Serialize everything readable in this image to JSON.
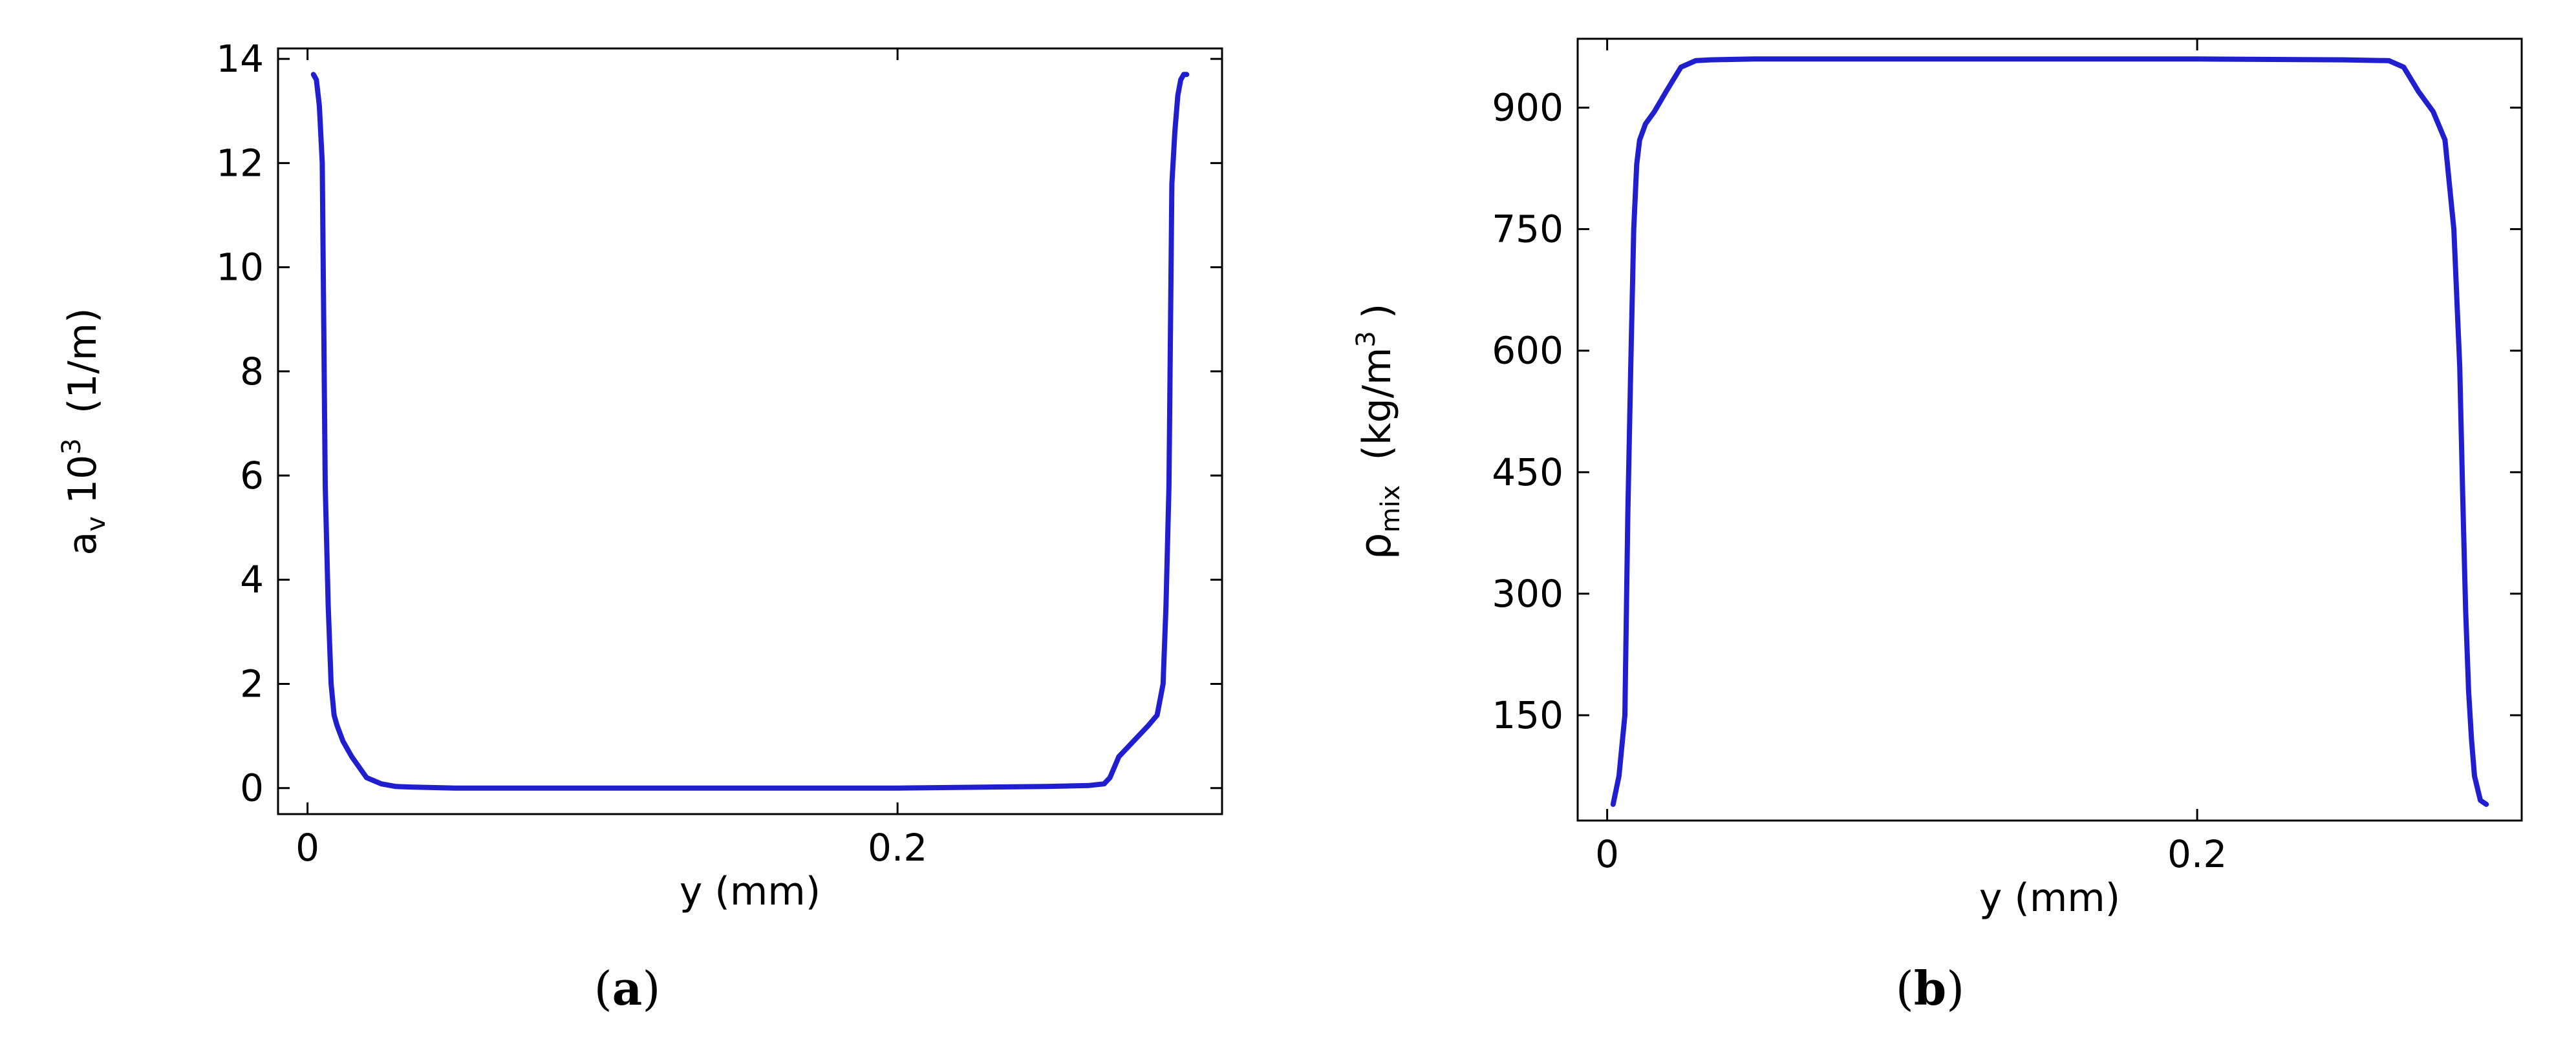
{
  "colors": {
    "line": "#1f1fcf",
    "axis": "#000000",
    "background": "#ffffff"
  },
  "chart_data": [
    {
      "type": "line",
      "panel": "a",
      "caption": {
        "open": "(",
        "letter": "a",
        "close": ")"
      },
      "xlabel": "y (mm)",
      "ylabel": {
        "main": "a",
        "sub": "v",
        "mid": " 10",
        "sup": "3",
        "tail": "  (1/m)"
      },
      "xlim": [
        -0.01,
        0.31
      ],
      "ylim": [
        -0.5,
        14.2
      ],
      "xticks": [
        {
          "value": 0,
          "label": "0"
        },
        {
          "value": 0.2,
          "label": "0.2"
        }
      ],
      "yticks": [
        {
          "value": 0,
          "label": "0"
        },
        {
          "value": 2,
          "label": "2"
        },
        {
          "value": 4,
          "label": "4"
        },
        {
          "value": 6,
          "label": "6"
        },
        {
          "value": 8,
          "label": "8"
        },
        {
          "value": 10,
          "label": "10"
        },
        {
          "value": 12,
          "label": "12"
        },
        {
          "value": 14,
          "label": "14"
        }
      ],
      "grid": false,
      "series": [
        {
          "x": [
            0.002,
            0.003,
            0.004,
            0.005,
            0.006,
            0.007,
            0.008,
            0.009,
            0.01,
            0.012,
            0.015,
            0.02,
            0.025,
            0.028,
            0.03,
            0.035,
            0.05,
            0.1,
            0.15,
            0.2,
            0.25,
            0.265,
            0.27,
            0.272,
            0.275,
            0.28,
            0.285,
            0.288,
            0.29,
            0.291,
            0.292,
            0.293,
            0.294,
            0.295,
            0.296,
            0.297,
            0.298
          ],
          "y": [
            13.7,
            13.6,
            13.1,
            12.0,
            5.8,
            3.5,
            2.0,
            1.4,
            1.2,
            0.9,
            0.6,
            0.2,
            0.08,
            0.05,
            0.03,
            0.02,
            0.0,
            0.0,
            0.0,
            0.0,
            0.03,
            0.05,
            0.08,
            0.2,
            0.6,
            0.9,
            1.2,
            1.4,
            2.0,
            3.5,
            5.8,
            11.6,
            12.6,
            13.3,
            13.6,
            13.7,
            13.7
          ]
        }
      ]
    },
    {
      "type": "line",
      "panel": "b",
      "caption": {
        "open": "(",
        "letter": "b",
        "close": ")"
      },
      "xlabel": "y (mm)",
      "ylabel": {
        "main": "ρ",
        "sub": "mix",
        "mid": "  (kg/m",
        "sup": "3",
        "tail": " )"
      },
      "xlim": [
        -0.01,
        0.31
      ],
      "ylim": [
        20,
        985
      ],
      "xticks": [
        {
          "value": 0,
          "label": "0"
        },
        {
          "value": 0.2,
          "label": "0.2"
        }
      ],
      "yticks": [
        {
          "value": 150,
          "label": "150"
        },
        {
          "value": 300,
          "label": "300"
        },
        {
          "value": 450,
          "label": "450"
        },
        {
          "value": 600,
          "label": "600"
        },
        {
          "value": 750,
          "label": "750"
        },
        {
          "value": 900,
          "label": "900"
        }
      ],
      "grid": false,
      "series": [
        {
          "x": [
            0.002,
            0.004,
            0.006,
            0.007,
            0.008,
            0.009,
            0.01,
            0.011,
            0.013,
            0.016,
            0.02,
            0.025,
            0.03,
            0.035,
            0.05,
            0.1,
            0.15,
            0.2,
            0.25,
            0.265,
            0.27,
            0.275,
            0.28,
            0.284,
            0.287,
            0.289,
            0.29,
            0.291,
            0.292,
            0.293,
            0.294,
            0.296,
            0.298
          ],
          "y": [
            40,
            75,
            150,
            400,
            580,
            750,
            830,
            860,
            880,
            895,
            920,
            950,
            958,
            959,
            960,
            960,
            960,
            960,
            959,
            958,
            950,
            920,
            895,
            860,
            750,
            580,
            420,
            280,
            180,
            120,
            75,
            45,
            40
          ]
        }
      ]
    }
  ]
}
